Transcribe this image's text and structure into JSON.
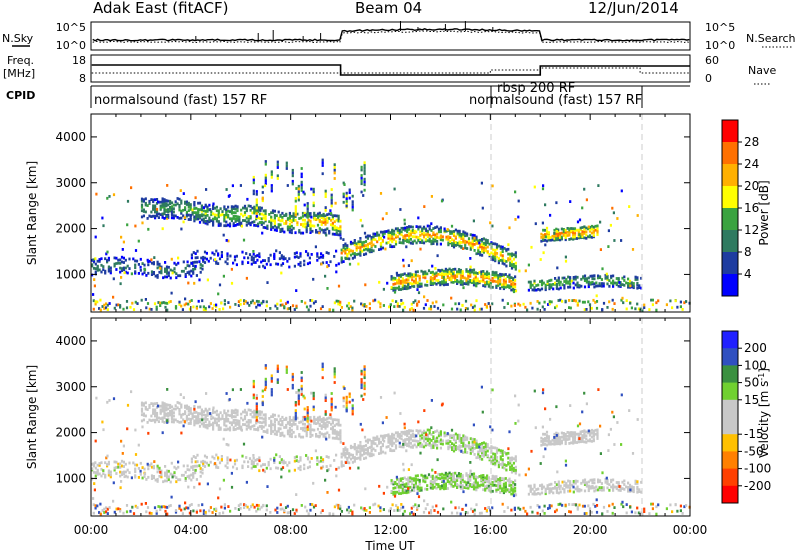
{
  "header": {
    "radar_title": "Adak East (fitACF)",
    "beam_label": "Beam 04",
    "date_label": "12/Jun/2014"
  },
  "left_labels": {
    "nsky": "N.Sky",
    "freq_line1": "Freq.",
    "freq_line2": "[MHz]",
    "cpid": "CPID"
  },
  "right_labels": {
    "nsearch": "N.Search",
    "nave": "Nave"
  },
  "noise_axis": {
    "left_ticks": [
      "10^5",
      "10^0"
    ],
    "right_ticks": [
      "10^5",
      "10^0"
    ]
  },
  "freq_axis": {
    "left_ticks": [
      "18",
      "8"
    ],
    "right_ticks": [
      "60",
      "0"
    ]
  },
  "cpid_labels": {
    "first": "normalsound (fast) 157 RF",
    "second": "rbsp 200 RF",
    "third": "normalsound (fast) 157 RF"
  },
  "colors": {
    "power": [
      "#0000ff",
      "#1e3ca0",
      "#2f7a60",
      "#3aa340",
      "#ffff00",
      "#ffb000",
      "#ff7000",
      "#ff0000"
    ],
    "velocity": [
      "#2020ff",
      "#3050c0",
      "#3a9040",
      "#70d030",
      "#c8c8c8",
      "#c8c8c8",
      "#ffc000",
      "#ff8000",
      "#ff4000",
      "#ff0000"
    ],
    "ground_scatter": "#c8c8c8"
  },
  "chart_data": [
    {
      "type": "heatmap",
      "title": "",
      "xlabel": "Time UT",
      "ylabel": "Slant Range [km]",
      "x_tick_labels": [
        "00:00",
        "04:00",
        "08:00",
        "12:00",
        "16:00",
        "20:00",
        "00:00"
      ],
      "x_range_hours": [
        0,
        24
      ],
      "y_range_km": [
        180,
        4500
      ],
      "y_tick_labels": [
        "1000",
        "2000",
        "3000",
        "4000"
      ],
      "y_ticks": [
        1000,
        2000,
        3000,
        4000
      ],
      "colorbar_label": "Power [dB]",
      "colorbar_ticks": [
        "4",
        "8",
        "12",
        "16",
        "20",
        "24",
        "28"
      ],
      "colorbar_range": [
        0,
        30
      ],
      "features": [
        {
          "name": "upper band",
          "time_hours": [
            2,
            10
          ],
          "range_km": [
            1900,
            2600
          ]
        },
        {
          "name": "rising arc",
          "time_hours": [
            10,
            17
          ],
          "range_km": [
            1000,
            1900
          ]
        },
        {
          "name": "lower band",
          "time_hours": [
            12,
            17
          ],
          "range_km": [
            600,
            1000
          ]
        },
        {
          "name": "late band",
          "time_hours": [
            18,
            20.3
          ],
          "range_km": [
            1700,
            2000
          ]
        }
      ]
    },
    {
      "type": "heatmap",
      "title": "",
      "xlabel": "Time UT",
      "ylabel": "Slant Range [km]",
      "x_tick_labels": [
        "00:00",
        "04:00",
        "08:00",
        "12:00",
        "16:00",
        "20:00",
        "00:00"
      ],
      "x_range_hours": [
        0,
        24
      ],
      "y_range_km": [
        180,
        4500
      ],
      "y_tick_labels": [
        "1000",
        "2000",
        "3000",
        "4000"
      ],
      "y_ticks": [
        1000,
        2000,
        3000,
        4000
      ],
      "colorbar_label": "Velocity [m s^-1]",
      "colorbar_ticks": [
        "200",
        "100",
        "50",
        "15",
        "-15",
        "-50",
        "-100",
        "-200"
      ],
      "colorbar_range": [
        -250,
        250
      ]
    }
  ]
}
